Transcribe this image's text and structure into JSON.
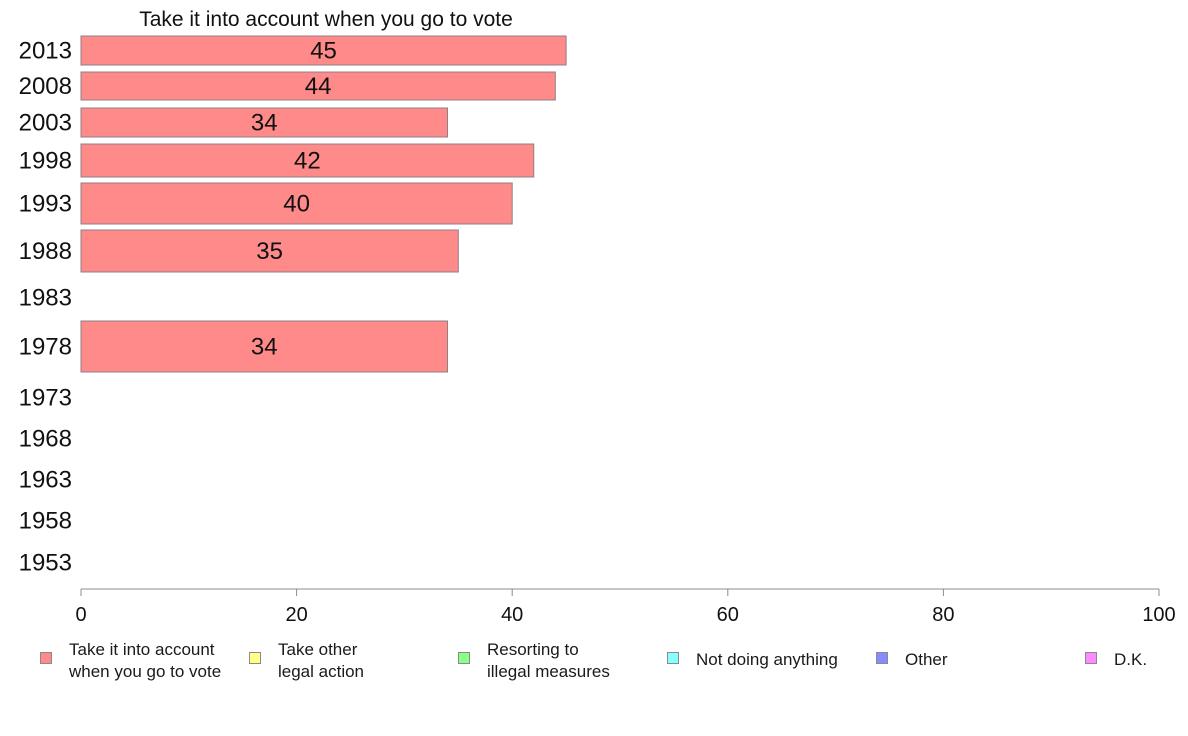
{
  "chart_data": {
    "type": "bar",
    "orientation": "horizontal",
    "title": "Take it into account when you go to vote",
    "categories": [
      "2013",
      "2008",
      "2003",
      "1998",
      "1993",
      "1988",
      "1983",
      "1978",
      "1973",
      "1968",
      "1963",
      "1958",
      "1953"
    ],
    "series": [
      {
        "name": "Take it into account when you go to vote",
        "color": "#ff8a8a",
        "values": [
          45,
          44,
          34,
          42,
          40,
          35,
          null,
          34,
          null,
          null,
          null,
          null,
          null
        ]
      }
    ],
    "xlim": [
      0,
      100
    ],
    "xticks": [
      0,
      20,
      40,
      60,
      80,
      100
    ],
    "grid": false,
    "legend_position": "bottom"
  },
  "legend": [
    {
      "label": "Take it into account\nwhen you go to vote",
      "color": "#ff8a8a"
    },
    {
      "label": "Take other\nlegal action",
      "color": "#ffff8a"
    },
    {
      "label": "Resorting to\nillegal measures",
      "color": "#8aff8a"
    },
    {
      "label": "Not doing anything",
      "color": "#8affff"
    },
    {
      "label": "Other",
      "color": "#8a8aff"
    },
    {
      "label": "D.K.",
      "color": "#ff8aff"
    }
  ]
}
